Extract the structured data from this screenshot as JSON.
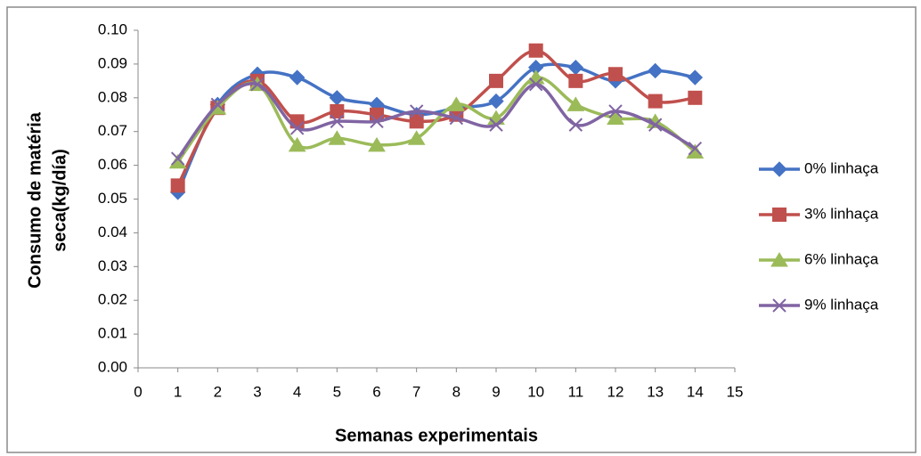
{
  "chart_data": {
    "type": "line",
    "xlabel": "Semanas experimentais",
    "ylabel": [
      "Consumo  de matéria",
      "seca(kg/día)"
    ],
    "x": [
      1,
      2,
      3,
      4,
      5,
      6,
      7,
      8,
      9,
      10,
      11,
      12,
      13,
      14
    ],
    "xlim": [
      0,
      15
    ],
    "xticks": [
      0,
      1,
      2,
      3,
      4,
      5,
      6,
      7,
      8,
      9,
      10,
      11,
      12,
      13,
      14,
      15
    ],
    "ylim": [
      0,
      0.1
    ],
    "yticks": [
      {
        "value": 0,
        "label": "0.00"
      },
      {
        "value": 0.01,
        "label": "0.01"
      },
      {
        "value": 0.02,
        "label": "0.02"
      },
      {
        "value": 0.03,
        "label": "0.03"
      },
      {
        "value": 0.04,
        "label": "0.04"
      },
      {
        "value": 0.05,
        "label": "0.05"
      },
      {
        "value": 0.06,
        "label": "0.06"
      },
      {
        "value": 0.07,
        "label": "0.07"
      },
      {
        "value": 0.08,
        "label": "0.08"
      },
      {
        "value": 0.09,
        "label": "0.09"
      },
      {
        "value": 0.1,
        "label": "0.10"
      }
    ],
    "smooth": true,
    "legend": "right",
    "series": [
      {
        "name": "0% linhaça",
        "color": "#4472c4",
        "marker": "diamond",
        "values": [
          0.052,
          0.078,
          0.087,
          0.086,
          0.08,
          0.078,
          0.075,
          0.077,
          0.079,
          0.089,
          0.089,
          0.085,
          0.088,
          0.086
        ]
      },
      {
        "name": "3% linhaça",
        "color": "#c0504d",
        "marker": "square",
        "values": [
          0.054,
          0.077,
          0.085,
          0.073,
          0.076,
          0.075,
          0.073,
          0.075,
          0.085,
          0.094,
          0.085,
          0.087,
          0.079,
          0.08
        ]
      },
      {
        "name": "6% linhaça",
        "color": "#9bbb59",
        "marker": "triangle",
        "values": [
          0.061,
          0.077,
          0.084,
          0.066,
          0.068,
          0.066,
          0.068,
          0.078,
          0.074,
          0.086,
          0.078,
          0.074,
          0.073,
          0.064
        ]
      },
      {
        "name": "9% linhaça",
        "color": "#8064a2",
        "marker": "x",
        "values": [
          0.062,
          0.078,
          0.084,
          0.071,
          0.073,
          0.073,
          0.076,
          0.074,
          0.072,
          0.084,
          0.072,
          0.076,
          0.072,
          0.065
        ]
      }
    ]
  }
}
